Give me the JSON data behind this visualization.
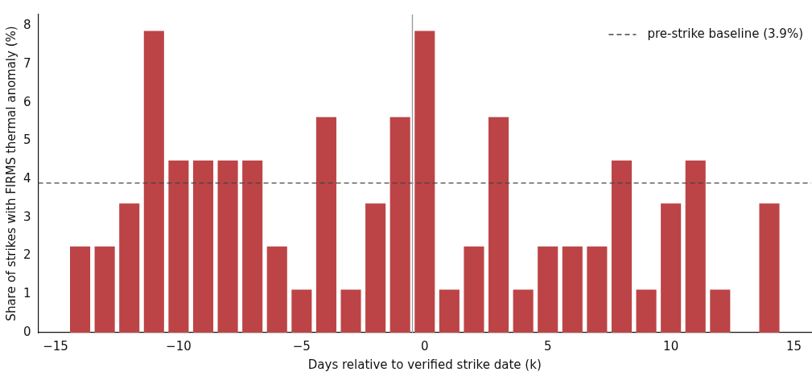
{
  "chart_data": {
    "type": "bar",
    "xlabel": "Days relative to verified strike date (k)",
    "ylabel": "Share of strikes with FIRMS thermal anomaly (%)",
    "x": [
      -14,
      -13,
      -12,
      -11,
      -10,
      -9,
      -8,
      -7,
      -6,
      -5,
      -4,
      -3,
      -2,
      -1,
      0,
      1,
      2,
      3,
      4,
      5,
      6,
      7,
      8,
      9,
      10,
      11,
      12,
      13,
      14
    ],
    "values": [
      2.25,
      2.25,
      3.37,
      7.87,
      4.49,
      4.49,
      4.49,
      4.49,
      2.25,
      1.12,
      5.62,
      1.12,
      3.37,
      5.62,
      7.87,
      1.12,
      2.25,
      5.62,
      1.12,
      2.25,
      2.25,
      2.25,
      4.49,
      1.12,
      3.37,
      4.49,
      1.12,
      0,
      3.37
    ],
    "color": "#bc4446",
    "xlim": [
      -15.7,
      15.7
    ],
    "xticks": [
      {
        "value": -15,
        "label": "−15"
      },
      {
        "value": -10,
        "label": "−10"
      },
      {
        "value": -5,
        "label": "−5"
      },
      0,
      5,
      10,
      15
    ],
    "ylim": [
      0,
      8.3
    ],
    "yticks": [
      0,
      1,
      2,
      3,
      4,
      5,
      6,
      7,
      8
    ],
    "ref_lines": [
      {
        "axis": "y",
        "value": 3.9,
        "label": "pre-strike baseline (3.9%)",
        "color": "#444444",
        "line_style": "dashed"
      },
      {
        "axis": "x",
        "value": -0.5,
        "color": "#999999",
        "line_style": "solid"
      }
    ],
    "grid": false,
    "legend": "top right"
  }
}
